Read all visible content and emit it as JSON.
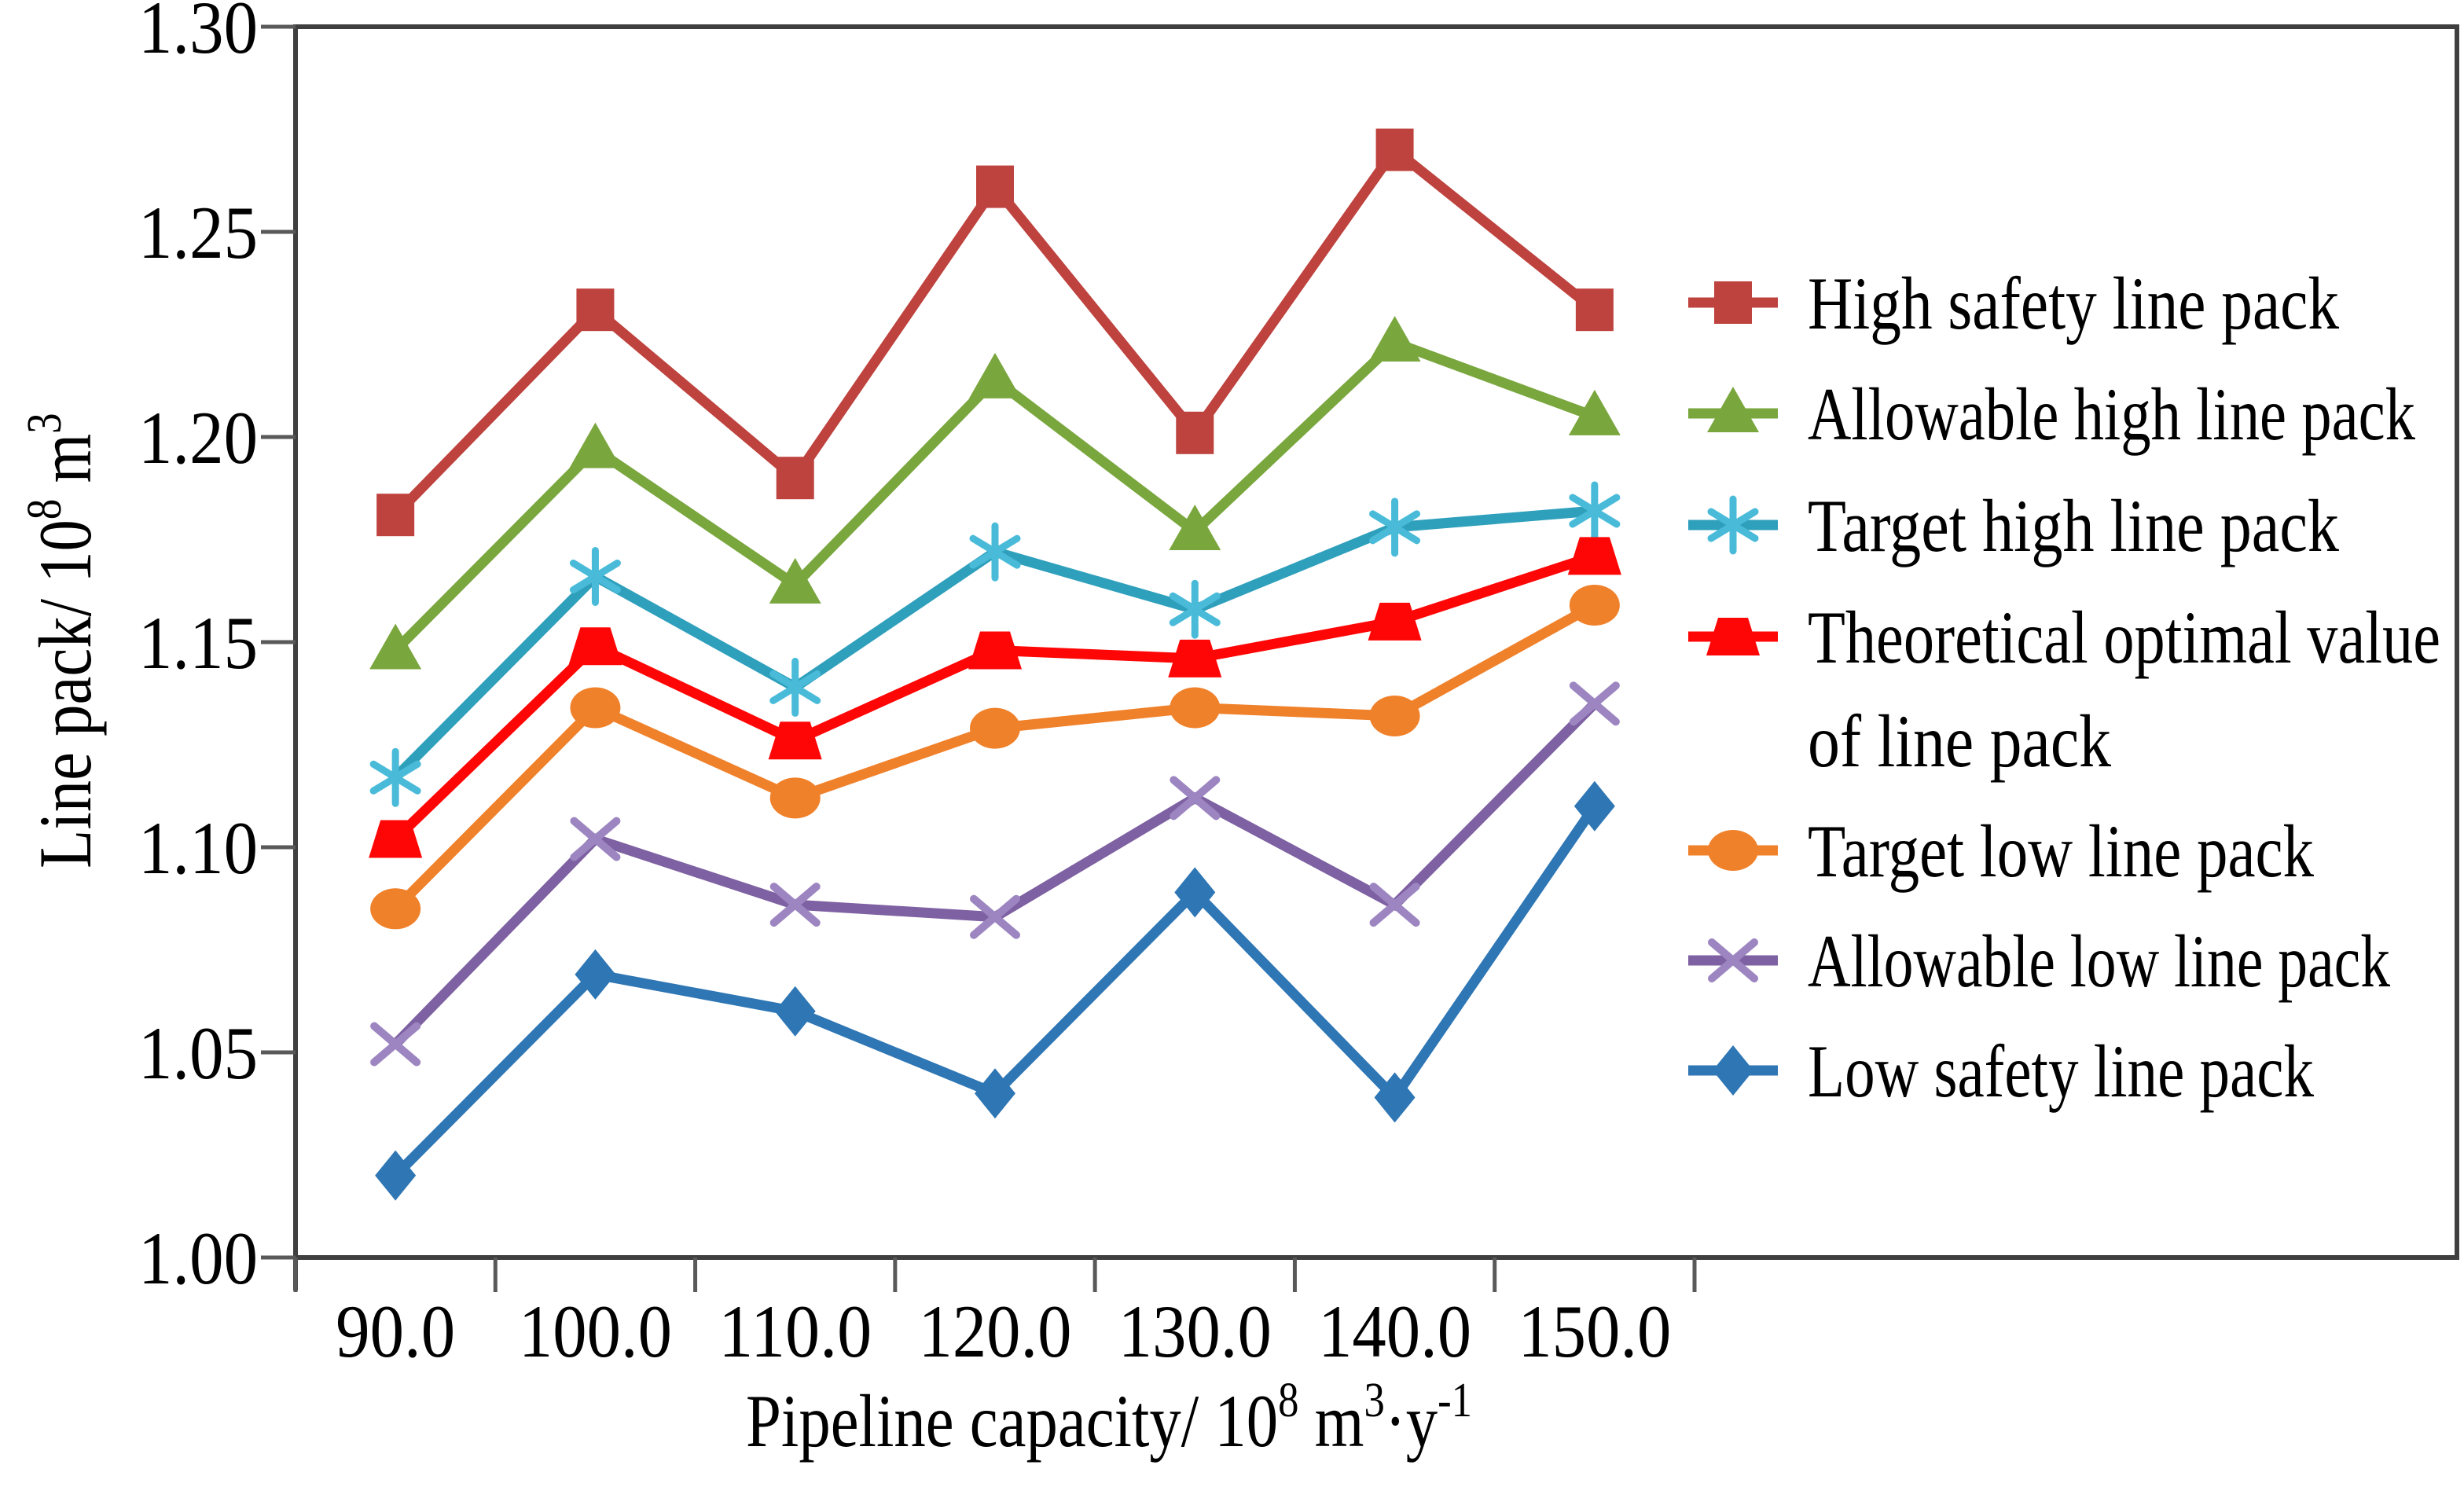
{
  "chart_data": {
    "type": "line",
    "title": "",
    "xlabel": "Pipeline capacity/ 10⁸ m³·y⁻¹",
    "ylabel": "Line pack/ 10⁸ m³",
    "xlabel_parts": [
      {
        "t": "Pipeline capacity/ 10"
      },
      {
        "t": "8",
        "sup": true
      },
      {
        "t": " m"
      },
      {
        "t": "3",
        "sup": true
      },
      {
        "t": "·y"
      },
      {
        "t": "-1",
        "sup": true
      }
    ],
    "ylabel_parts": [
      {
        "t": "Line pack/ 10"
      },
      {
        "t": "8",
        "sup": true
      },
      {
        "t": " m"
      },
      {
        "t": "3",
        "sup": true
      }
    ],
    "x": [
      90.0,
      100.0,
      110.0,
      120.0,
      130.0,
      140.0,
      150.0
    ],
    "x_tick_labels": [
      "90.0",
      "100.0",
      "110.0",
      "120.0",
      "130.0",
      "140.0",
      "150.0"
    ],
    "y_tick_values": [
      1.0,
      1.05,
      1.1,
      1.15,
      1.2,
      1.25,
      1.3
    ],
    "y_tick_labels": [
      "1.00",
      "1.05",
      "1.10",
      "1.15",
      "1.20",
      "1.25",
      "1.30"
    ],
    "ylim": [
      1.0,
      1.3
    ],
    "grid": false,
    "legend_position": "right",
    "axis_color": "#3F3F3F",
    "tick_color": "#595959",
    "text_color": "#000000",
    "background": "#FFFFFF",
    "series": [
      {
        "name": "High safety line pack",
        "legend_lines": [
          "High safety line pack"
        ],
        "marker": "square",
        "color": "#BE423D",
        "values": [
          1.181,
          1.231,
          1.19,
          1.261,
          1.201,
          1.27,
          1.231
        ]
      },
      {
        "name": "Allowable high line pack",
        "legend_lines": [
          "Allowable high line pack"
        ],
        "marker": "triangle",
        "color": "#7AA63E",
        "values": [
          1.148,
          1.197,
          1.164,
          1.214,
          1.177,
          1.223,
          1.205
        ]
      },
      {
        "name": "Target high line pack",
        "legend_lines": [
          "Target high line pack"
        ],
        "marker": "asterisk",
        "color": "#2FA0BC",
        "marker_color": "#49BBD9",
        "values": [
          1.117,
          1.166,
          1.139,
          1.172,
          1.158,
          1.178,
          1.182
        ]
      },
      {
        "name": "Theoretical optimal value of line pack",
        "legend_lines": [
          "Theoretical optimal value",
          "of line pack"
        ],
        "marker": "trapezoid",
        "color": "#FE0606",
        "values": [
          1.102,
          1.149,
          1.126,
          1.148,
          1.146,
          1.155,
          1.171
        ]
      },
      {
        "name": "Target low line pack",
        "legend_lines": [
          "Target low line pack"
        ],
        "marker": "circle",
        "color": "#F0812B",
        "values": [
          1.085,
          1.134,
          1.112,
          1.129,
          1.134,
          1.132,
          1.159
        ]
      },
      {
        "name": "Allowable low line pack",
        "legend_lines": [
          "Allowable low line pack"
        ],
        "marker": "x",
        "color": "#7E61A2",
        "marker_color": "#9C85C0",
        "values": [
          1.052,
          1.102,
          1.086,
          1.083,
          1.112,
          1.086,
          1.135
        ]
      },
      {
        "name": "Low safety line pack",
        "legend_lines": [
          "Low safety line pack"
        ],
        "marker": "diamond",
        "color": "#2E76B4",
        "values": [
          1.02,
          1.069,
          1.06,
          1.04,
          1.089,
          1.039,
          1.11
        ]
      }
    ]
  }
}
